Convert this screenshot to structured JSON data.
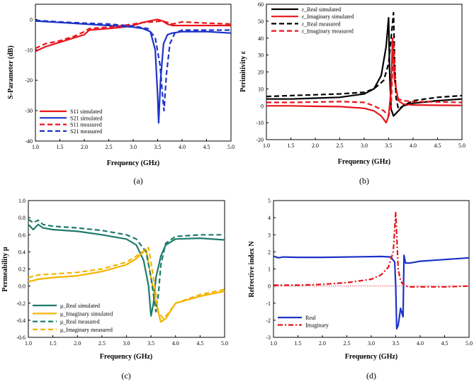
{
  "colors": {
    "red": "#e8141b",
    "blue": "#1c33c8",
    "black": "#000000",
    "teal": "#1e7b6c",
    "gold": "#f2b400"
  },
  "chart_data": [
    {
      "type": "line",
      "caption": "(a)",
      "xlabel": "Frequency (GHz)",
      "ylabel": "S-Parameter (dB)",
      "xlim": [
        1.0,
        5.0
      ],
      "ylim": [
        -40,
        5
      ],
      "xticks": [
        "1.0",
        "1.5",
        "2.0",
        "2.5",
        "3.0",
        "3.5",
        "4.0",
        "4.5",
        "5.0"
      ],
      "yticks": [
        "0",
        "-10",
        "-20",
        "-30",
        "-40"
      ],
      "ytick_values": [
        0,
        -10,
        -20,
        -30,
        -40
      ],
      "legend": "bottom-left",
      "series": [
        {
          "name": "S11 simulated",
          "color": "red",
          "dash": false,
          "x": [
            1.0,
            1.2,
            1.5,
            1.8,
            2.0,
            2.1,
            2.5,
            2.8,
            3.0,
            3.2,
            3.4,
            3.5,
            3.6,
            3.7,
            3.8,
            4.0,
            4.5,
            5.0
          ],
          "y": [
            -10.5,
            -9,
            -7.5,
            -6,
            -5,
            -3.5,
            -3,
            -2.5,
            -2,
            -1,
            -0.3,
            0,
            -0.5,
            -1.5,
            -2,
            -2,
            -2,
            -2
          ]
        },
        {
          "name": "S21 simulated",
          "color": "blue",
          "dash": false,
          "x": [
            1.0,
            1.5,
            2.0,
            2.5,
            3.0,
            3.2,
            3.35,
            3.45,
            3.5,
            3.52,
            3.56,
            3.62,
            3.7,
            3.8,
            4.0,
            4.5,
            5.0
          ],
          "y": [
            -0.5,
            -1,
            -1.5,
            -2,
            -2.5,
            -3,
            -4,
            -10,
            -25,
            -34,
            -20,
            -8,
            -5,
            -4.5,
            -4,
            -4,
            -4.5
          ]
        },
        {
          "name": "S11 measured",
          "color": "red",
          "dash": true,
          "x": [
            1.0,
            1.2,
            1.5,
            1.8,
            2.0,
            2.1,
            2.5,
            2.8,
            3.0,
            3.2,
            3.4,
            3.6,
            3.7,
            3.8,
            4.0,
            4.5,
            5.0
          ],
          "y": [
            -9.5,
            -8,
            -7,
            -5.5,
            -4,
            -3,
            -2.5,
            -2,
            -1.5,
            -1,
            -0.8,
            -0.5,
            -1,
            -1.5,
            -0.8,
            -1.2,
            -1.5
          ]
        },
        {
          "name": "S21 measured",
          "color": "blue",
          "dash": true,
          "x": [
            1.0,
            1.5,
            2.0,
            2.5,
            3.0,
            3.3,
            3.45,
            3.55,
            3.6,
            3.63,
            3.68,
            3.75,
            3.85,
            4.0,
            4.5,
            5.0
          ],
          "y": [
            -0.3,
            -0.8,
            -1.2,
            -1.5,
            -2.2,
            -3,
            -6,
            -15,
            -25,
            -30,
            -18,
            -8,
            -4.5,
            -3.5,
            -3.5,
            -3.5
          ]
        }
      ]
    },
    {
      "type": "line",
      "caption": "(b)",
      "xlabel": "Frequency (GHz)",
      "ylabel": "Perimitivity ε",
      "xlim": [
        1.0,
        5.0
      ],
      "ylim": [
        -20,
        60
      ],
      "xticks": [
        "1.0",
        "1.5",
        "2.0",
        "2.5",
        "3.0",
        "3.5",
        "4.0",
        "4.5",
        "5.0"
      ],
      "yticks": [
        "60",
        "50",
        "40",
        "30",
        "20",
        "10",
        "0",
        "-10",
        "-20"
      ],
      "ytick_values": [
        60,
        50,
        40,
        30,
        20,
        10,
        0,
        -10,
        -20
      ],
      "legend": "top-left",
      "series": [
        {
          "name": "ε_Real simulated",
          "color": "black",
          "dash": false,
          "x": [
            1.0,
            1.5,
            2.0,
            2.5,
            3.0,
            3.2,
            3.35,
            3.45,
            3.5,
            3.52,
            3.55,
            3.6,
            3.7,
            3.8,
            4.0,
            4.5,
            5.0
          ],
          "y": [
            4,
            4,
            4.5,
            5,
            7,
            10,
            18,
            35,
            52,
            20,
            -2,
            -6,
            -3,
            0,
            1.5,
            3,
            4
          ]
        },
        {
          "name": "ε_Imaginary simulated",
          "color": "red",
          "dash": false,
          "x": [
            1.0,
            1.5,
            2.0,
            2.5,
            3.0,
            3.2,
            3.35,
            3.45,
            3.5,
            3.55,
            3.58,
            3.62,
            3.7,
            3.8,
            4.0,
            4.5,
            5.0
          ],
          "y": [
            0,
            0,
            -0.3,
            -0.5,
            -1.5,
            -3,
            -6,
            -10,
            -6,
            10,
            40,
            15,
            3,
            1,
            0.5,
            0.3,
            0.2
          ]
        },
        {
          "name": "ε_Real measured",
          "color": "black",
          "dash": true,
          "x": [
            1.0,
            1.5,
            2.0,
            2.5,
            3.0,
            3.2,
            3.4,
            3.5,
            3.55,
            3.6,
            3.62,
            3.65,
            3.7,
            3.8,
            4.0,
            4.5,
            5.0
          ],
          "y": [
            5.5,
            6,
            6.5,
            7,
            8,
            10,
            15,
            25,
            40,
            55,
            30,
            5,
            -2,
            0,
            3,
            5,
            6
          ]
        },
        {
          "name": "ε_Imaginary measured",
          "color": "red",
          "dash": true,
          "x": [
            1.0,
            1.5,
            2.0,
            2.5,
            3.0,
            3.2,
            3.4,
            3.5,
            3.55,
            3.6,
            3.65,
            3.7,
            3.8,
            4.0,
            4.5,
            5.0
          ],
          "y": [
            2,
            2,
            2.2,
            2.5,
            2,
            0,
            -3,
            -6,
            0,
            38,
            10,
            4,
            3,
            2.5,
            2.3,
            2
          ]
        }
      ]
    },
    {
      "type": "line",
      "caption": "(c)",
      "xlabel": "Frequency (GHz)",
      "ylabel": "Permeability μ",
      "xlim": [
        1.0,
        5.0
      ],
      "ylim": [
        -0.6,
        1.0
      ],
      "xticks": [
        "1.0",
        "1.5",
        "2.0",
        "2.5",
        "3.0",
        "3.5",
        "4.0",
        "4.5",
        "5.0"
      ],
      "yticks": [
        "1.0",
        "0.8",
        "0.6",
        "0.4",
        "0.2",
        "0.0",
        "-0.2",
        "-0.4",
        "-0.6"
      ],
      "ytick_values": [
        1.0,
        0.8,
        0.6,
        0.4,
        0.2,
        0.0,
        -0.2,
        -0.4,
        -0.6
      ],
      "legend": "bottom-left",
      "series": [
        {
          "name": "μ_Real simulated",
          "color": "teal",
          "dash": false,
          "x": [
            1.0,
            1.1,
            1.2,
            1.3,
            1.5,
            2.0,
            2.5,
            3.0,
            3.2,
            3.35,
            3.45,
            3.5,
            3.55,
            3.6,
            3.7,
            3.8,
            4.0,
            4.5,
            5.0
          ],
          "y": [
            0.72,
            0.66,
            0.72,
            0.68,
            0.66,
            0.64,
            0.6,
            0.55,
            0.48,
            0.3,
            0.0,
            -0.35,
            -0.2,
            0.1,
            0.35,
            0.48,
            0.55,
            0.56,
            0.54
          ]
        },
        {
          "name": "μ_Imaginary simulated",
          "color": "gold",
          "dash": false,
          "x": [
            1.0,
            1.2,
            1.5,
            2.0,
            2.5,
            3.0,
            3.2,
            3.4,
            3.5,
            3.6,
            3.7,
            3.8,
            4.0,
            4.5,
            5.0
          ],
          "y": [
            0.05,
            0.08,
            0.1,
            0.12,
            0.17,
            0.25,
            0.32,
            0.43,
            0.1,
            -0.2,
            -0.42,
            -0.38,
            -0.2,
            -0.12,
            -0.06
          ]
        },
        {
          "name": "μ_Real measured",
          "color": "teal",
          "dash": true,
          "x": [
            1.0,
            1.1,
            1.2,
            1.3,
            1.5,
            2.0,
            2.5,
            3.0,
            3.2,
            3.4,
            3.5,
            3.6,
            3.65,
            3.7,
            3.8,
            4.0,
            4.5,
            5.0
          ],
          "y": [
            0.78,
            0.74,
            0.77,
            0.72,
            0.7,
            0.68,
            0.65,
            0.6,
            0.55,
            0.4,
            0.1,
            -0.3,
            -0.1,
            0.25,
            0.5,
            0.58,
            0.6,
            0.6
          ]
        },
        {
          "name": "μ_Imaginary measured",
          "color": "gold",
          "dash": true,
          "x": [
            1.0,
            1.2,
            1.5,
            2.0,
            2.5,
            3.0,
            3.2,
            3.45,
            3.55,
            3.65,
            3.75,
            3.85,
            4.0,
            4.5,
            5.0
          ],
          "y": [
            0.1,
            0.13,
            0.14,
            0.16,
            0.2,
            0.28,
            0.35,
            0.45,
            0.1,
            -0.3,
            -0.38,
            -0.32,
            -0.2,
            -0.1,
            -0.04
          ]
        }
      ]
    },
    {
      "type": "line",
      "caption": "(d)",
      "xlabel": "Frequency (GHz)",
      "ylabel": "Refrective index N",
      "xlim": [
        1.0,
        5.0
      ],
      "ylim": [
        -3,
        5
      ],
      "xticks": [
        "1.0",
        "1.5",
        "2.0",
        "2.5",
        "3.0",
        "3.5",
        "4.0",
        "4.5",
        "5.0"
      ],
      "yticks": [
        "5",
        "4",
        "3",
        "2",
        "1",
        "0",
        "-1",
        "-2",
        "-3"
      ],
      "ytick_values": [
        5,
        4,
        3,
        2,
        1,
        0,
        -1,
        -2,
        -3
      ],
      "legend": "bottom-left",
      "series": [
        {
          "name": "Real",
          "color": "blue",
          "dash": false,
          "x": [
            1.0,
            1.1,
            1.2,
            1.5,
            2.0,
            2.5,
            3.0,
            3.2,
            3.4,
            3.48,
            3.5,
            3.52,
            3.55,
            3.6,
            3.65,
            3.67,
            3.7,
            3.8,
            4.0,
            4.5,
            5.0
          ],
          "y": [
            1.75,
            1.65,
            1.7,
            1.68,
            1.68,
            1.7,
            1.72,
            1.73,
            1.7,
            1.4,
            0.0,
            -2.5,
            -2.3,
            -1.3,
            -1.8,
            1.8,
            1.35,
            1.35,
            1.45,
            1.55,
            1.65
          ]
        },
        {
          "name": "Imaginary",
          "color": "red",
          "dash": false,
          "dashdot": true,
          "x": [
            1.0,
            1.5,
            2.0,
            2.5,
            3.0,
            3.2,
            3.35,
            3.45,
            3.5,
            3.52,
            3.55,
            3.6,
            3.65,
            3.7,
            3.8,
            4.0,
            4.5,
            5.0
          ],
          "y": [
            0.05,
            0.05,
            0.1,
            0.2,
            0.4,
            0.65,
            1.1,
            2.0,
            4.3,
            3.0,
            1.0,
            0.3,
            0.1,
            0.0,
            -0.05,
            -0.05,
            -0.05,
            0.0
          ]
        }
      ]
    }
  ]
}
